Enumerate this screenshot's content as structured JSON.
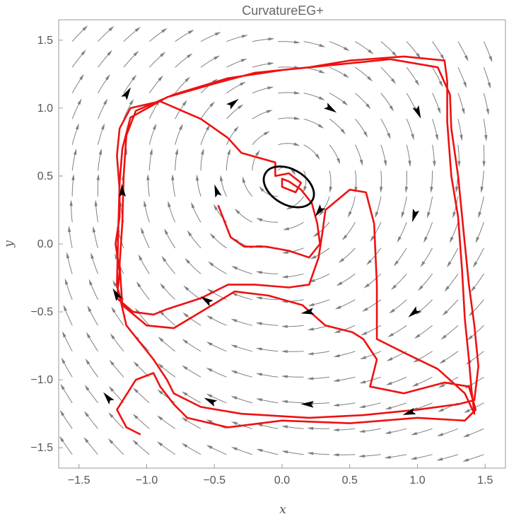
{
  "chart_data": {
    "type": "streamplot",
    "title": "CurvatureEG+",
    "xlabel": "x",
    "ylabel": "y",
    "xlim": [
      -1.65,
      1.65
    ],
    "ylim": [
      -1.65,
      1.65
    ],
    "xticks": [
      -1.5,
      -1.0,
      -0.5,
      0.0,
      0.5,
      1.0,
      1.5
    ],
    "yticks": [
      -1.5,
      -1.0,
      -0.5,
      0.0,
      0.5,
      1.0,
      1.5
    ],
    "xtick_labels": [
      "-1.5",
      "-1.0",
      "-0.5",
      "0.0",
      "0.5",
      "1.0",
      "1.5"
    ],
    "ytick_labels": [
      "-1.5",
      "-1.0",
      "-0.5",
      "0.0",
      "0.5",
      "1.0",
      "1.5"
    ],
    "grid": false,
    "colors": {
      "stream": "#808080",
      "trajectory": "#ee1111",
      "cycle": "#000000",
      "frame": "#999999"
    },
    "vector_field": {
      "center": [
        0.0,
        0.5
      ],
      "rotation": "clockwise"
    },
    "limit_cycle": {
      "center": [
        0.05,
        0.42
      ],
      "rx": 0.2,
      "ry": 0.13,
      "angle_deg": -30
    },
    "trajectory": [
      [
        -0.47,
        0.28
      ],
      [
        -0.38,
        0.05
      ],
      [
        -0.28,
        -0.02
      ],
      [
        -0.12,
        -0.02
      ],
      [
        0.05,
        -0.05
      ],
      [
        0.2,
        -0.1
      ],
      [
        0.28,
        0.0
      ],
      [
        0.26,
        0.15
      ],
      [
        0.22,
        0.3
      ],
      [
        0.14,
        0.4
      ],
      [
        0.05,
        0.46
      ],
      [
        0.0,
        0.48
      ],
      [
        0.0,
        0.42
      ],
      [
        0.1,
        0.38
      ],
      [
        0.14,
        0.45
      ],
      [
        0.05,
        0.52
      ],
      [
        -0.05,
        0.5
      ],
      [
        -0.05,
        0.6
      ],
      [
        -0.3,
        0.67
      ],
      [
        -0.4,
        0.78
      ],
      [
        -0.6,
        0.92
      ],
      [
        -0.9,
        1.05
      ],
      [
        -1.12,
        1.0
      ],
      [
        -1.2,
        0.85
      ],
      [
        -1.22,
        0.65
      ],
      [
        -1.2,
        0.4
      ],
      [
        -1.2,
        0.2
      ],
      [
        -1.23,
        0.0
      ],
      [
        -1.2,
        -0.2
      ],
      [
        -1.22,
        -0.4
      ],
      [
        -1.1,
        -0.5
      ],
      [
        -0.95,
        -0.52
      ],
      [
        -0.85,
        -0.48
      ],
      [
        -0.6,
        -0.4
      ],
      [
        -0.4,
        -0.3
      ],
      [
        -0.2,
        -0.3
      ],
      [
        0.05,
        -0.32
      ],
      [
        0.2,
        -0.3
      ],
      [
        0.27,
        -0.1
      ],
      [
        0.3,
        0.1
      ],
      [
        0.32,
        0.25
      ],
      [
        0.5,
        0.4
      ],
      [
        0.62,
        0.38
      ],
      [
        0.68,
        0.15
      ],
      [
        0.7,
        -0.3
      ],
      [
        0.7,
        -0.7
      ],
      [
        0.9,
        -0.8
      ],
      [
        1.15,
        -0.92
      ],
      [
        1.35,
        -1.1
      ],
      [
        1.42,
        -1.25
      ],
      [
        1.4,
        -1.08
      ],
      [
        1.38,
        -0.85
      ],
      [
        1.35,
        -0.55
      ],
      [
        1.33,
        -0.2
      ],
      [
        1.3,
        0.2
      ],
      [
        1.25,
        0.5
      ],
      [
        1.22,
        0.9
      ],
      [
        1.22,
        1.2
      ],
      [
        1.2,
        1.35
      ],
      [
        0.9,
        1.38
      ],
      [
        0.5,
        1.35
      ],
      [
        0.2,
        1.3
      ],
      [
        -0.2,
        1.26
      ],
      [
        -0.5,
        1.18
      ],
      [
        -0.85,
        1.08
      ],
      [
        -1.12,
        0.93
      ],
      [
        -1.18,
        0.7
      ],
      [
        -1.2,
        0.45
      ],
      [
        -1.21,
        0.1
      ],
      [
        -1.22,
        -0.3
      ],
      [
        -1.15,
        -0.6
      ],
      [
        -0.95,
        -0.85
      ],
      [
        -0.85,
        -1.0
      ],
      [
        -0.8,
        -1.1
      ],
      [
        -0.6,
        -1.2
      ],
      [
        -0.3,
        -1.25
      ],
      [
        0.2,
        -1.28
      ],
      [
        0.6,
        -1.26
      ],
      [
        1.0,
        -1.22
      ],
      [
        1.3,
        -1.18
      ],
      [
        1.42,
        -1.15
      ],
      [
        1.45,
        -0.9
      ],
      [
        1.42,
        -0.6
      ],
      [
        1.38,
        -0.3
      ],
      [
        1.34,
        0.1
      ],
      [
        1.3,
        0.5
      ],
      [
        1.25,
        0.85
      ],
      [
        1.24,
        1.1
      ],
      [
        1.15,
        1.3
      ],
      [
        0.8,
        1.36
      ],
      [
        0.4,
        1.32
      ],
      [
        0.0,
        1.28
      ],
      [
        -0.4,
        1.22
      ],
      [
        -0.8,
        1.1
      ],
      [
        -1.08,
        0.98
      ],
      [
        -1.15,
        0.8
      ],
      [
        -1.17,
        0.5
      ],
      [
        -1.18,
        0.15
      ],
      [
        -1.2,
        -0.15
      ],
      [
        -1.18,
        -0.45
      ],
      [
        -1.0,
        -0.6
      ],
      [
        -0.8,
        -0.62
      ],
      [
        -0.6,
        -0.5
      ],
      [
        -0.35,
        -0.35
      ],
      [
        -0.1,
        -0.38
      ],
      [
        0.15,
        -0.45
      ],
      [
        0.32,
        -0.6
      ],
      [
        0.52,
        -0.65
      ],
      [
        0.6,
        -0.7
      ],
      [
        0.7,
        -0.85
      ],
      [
        0.65,
        -1.05
      ],
      [
        0.9,
        -1.1
      ],
      [
        1.2,
        -1.02
      ],
      [
        1.38,
        -1.05
      ],
      [
        1.43,
        -1.22
      ],
      [
        1.35,
        -1.3
      ],
      [
        1.0,
        -1.28
      ],
      [
        0.5,
        -1.32
      ],
      [
        0.0,
        -1.3
      ],
      [
        -0.4,
        -1.35
      ],
      [
        -0.7,
        -1.28
      ],
      [
        -0.8,
        -1.18
      ],
      [
        -0.9,
        -1.05
      ],
      [
        -0.95,
        -0.95
      ],
      [
        -1.08,
        -1.0
      ],
      [
        -1.22,
        -1.22
      ],
      [
        -1.15,
        -1.35
      ],
      [
        -1.05,
        -1.4
      ]
    ],
    "arrowheads_black": [
      [
        -1.15,
        1.1
      ],
      [
        -0.37,
        1.03
      ],
      [
        0.35,
        1.0
      ],
      [
        1.0,
        0.98
      ],
      [
        -1.18,
        0.38
      ],
      [
        -0.48,
        0.38
      ],
      [
        0.28,
        0.25
      ],
      [
        0.98,
        0.22
      ],
      [
        -1.22,
        -0.38
      ],
      [
        -0.55,
        -0.42
      ],
      [
        0.2,
        -0.5
      ],
      [
        0.98,
        -0.5
      ],
      [
        -1.28,
        -1.14
      ],
      [
        -0.52,
        -1.16
      ],
      [
        0.2,
        -1.18
      ],
      [
        0.95,
        -1.24
      ]
    ]
  }
}
